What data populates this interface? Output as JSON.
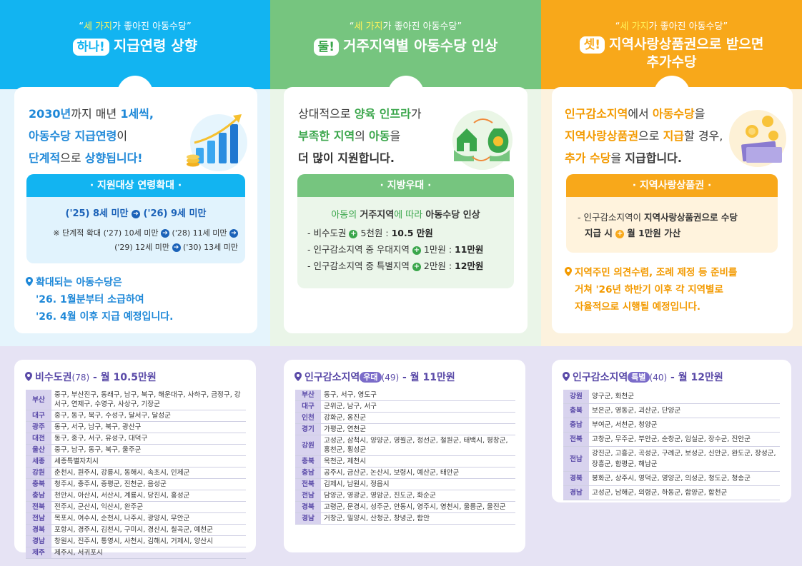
{
  "colors": {
    "blue": "#12b4f1",
    "green": "#76c57f",
    "orange": "#f8a81a",
    "purple": "#7b6cc9"
  },
  "slogan": {
    "q_open": "“",
    "hl": "세 가지",
    "rest": "가 좋아진 아동수당",
    "q_close": "”"
  },
  "col1": {
    "badge": "하나!",
    "heading": "지급연령 상향",
    "lead": {
      "l1a": "2030년",
      "l1b": "까지 매년 ",
      "l1c": "1세씩,",
      "l2a": "아동수당 지급연령",
      "l2b": "이",
      "l3a": "단계적",
      "l3b": "으로 ",
      "l3c": "상향됩니다!"
    },
    "box_title": "· 지원대상 연령확대 ·",
    "box_main_a": "('25) 8세 미만",
    "box_main_b": "('26) 9세 미만",
    "note_prefix": "※ 단계적 확대 ",
    "note1": "('27) 10세 미만",
    "note2": "('28) 11세 미만",
    "note3": "('29) 12세 미만",
    "note4": "('30) 13세 미만",
    "pin_l1": "확대되는 아동수당은",
    "pin_l2": "'26. 1월분부터 소급하여",
    "pin_l3": "'26. 4월 이후 지급 예정입니다."
  },
  "col2": {
    "badge": "둘!",
    "heading": "거주지역별 아동수당 인상",
    "lead": {
      "l1a": "상대적으로 ",
      "l1b": "양육 인프라",
      "l1c": "가",
      "l2a": "부족한 지역",
      "l2b": "의 ",
      "l2c": "아동",
      "l2d": "을",
      "l3": "더 많이 지원합니다."
    },
    "box_title": "· 지방우대 ·",
    "box_lead_a": "아동의 ",
    "box_lead_b": "거주지역",
    "box_lead_c": "에 따라 ",
    "box_lead_d": "아동수당 인상",
    "lines": [
      {
        "a": "- 비수도권 ",
        "b": "5천원 : ",
        "c": "10.5 만원"
      },
      {
        "a": "- 인구감소지역 중 우대지역 ",
        "b": "1만원 : ",
        "c": "11만원"
      },
      {
        "a": "- 인구감소지역 중 특별지역 ",
        "b": "2만원 : ",
        "c": "12만원"
      }
    ]
  },
  "col3": {
    "badge": "셋!",
    "heading_l1": "지역사랑상품권으로 받으면",
    "heading_l2": "추가수당",
    "lead": {
      "l1a": "인구감소지역",
      "l1b": "에서 ",
      "l1c": "아동수당",
      "l1d": "을",
      "l2a": "지역사랑상품권",
      "l2b": "으로 ",
      "l2c": "지급",
      "l2d": "할 경우,",
      "l3a": "추가 수당",
      "l3b": "을 ",
      "l3c": "지급합니다."
    },
    "box_title": "· 지역사랑상품권 ·",
    "box_l1a": "- 인구감소지역이 ",
    "box_l1b": "지역사랑상품권으로 수당",
    "box_l2a": "지급 시 ",
    "box_l2b": "월 1만원 가산",
    "pin_l1": "지역주민 의견수렴, 조례 제정 등 준비를",
    "pin_l2": "거쳐 '26년 하반기 이후 각 지역별로",
    "pin_l3": "자율적으로 시행될 예정입니다."
  },
  "table1": {
    "title_a": "비수도권",
    "title_b": "(78)",
    "title_c": " - 월 10.5만원",
    "rows": [
      {
        "region": "부산",
        "areas": "중구, 부산진구, 동래구, 남구, 북구, 해운대구, 사하구, 금정구, 강서구, 연제구, 수영구, 사상구, 기장군"
      },
      {
        "region": "대구",
        "areas": "중구, 동구, 북구, 수성구, 달서구, 달성군"
      },
      {
        "region": "광주",
        "areas": "동구, 서구, 남구, 북구, 광산구"
      },
      {
        "region": "대전",
        "areas": "동구, 중구, 서구, 유성구, 대덕구"
      },
      {
        "region": "울산",
        "areas": "중구, 남구, 동구, 북구, 울주군"
      },
      {
        "region": "세종",
        "areas": "세종특별자치시"
      },
      {
        "region": "강원",
        "areas": "춘천시, 원주시, 강릉시, 동해시, 속초시, 인제군"
      },
      {
        "region": "충북",
        "areas": "청주시, 충주시, 증평군, 진천군, 음성군"
      },
      {
        "region": "충남",
        "areas": "천안시, 아산시, 서산시, 계룡시, 당진시, 홍성군"
      },
      {
        "region": "전북",
        "areas": "전주시, 군산시, 익산시, 완주군"
      },
      {
        "region": "전남",
        "areas": "목포시, 여수시, 순천시, 나주시, 광양시, 무안군"
      },
      {
        "region": "경북",
        "areas": "포항시, 경주시, 김천시, 구미시, 경산시, 칠곡군, 예천군"
      },
      {
        "region": "경남",
        "areas": "창원시, 진주시, 통영시, 사천시, 김해시, 거제시, 양산시"
      },
      {
        "region": "제주",
        "areas": "제주시, 서귀포시"
      }
    ]
  },
  "table2": {
    "title_a": "인구감소지역",
    "title_tag": "우대",
    "title_b": "(49)",
    "title_c": " - 월 11만원",
    "rows": [
      {
        "region": "부산",
        "areas": "동구, 서구, 영도구"
      },
      {
        "region": "대구",
        "areas": "군위군, 남구, 서구"
      },
      {
        "region": "인천",
        "areas": "강화군, 옹진군"
      },
      {
        "region": "경기",
        "areas": "가평군, 연천군"
      },
      {
        "region": "강원",
        "areas": "고성군, 삼척시, 양양군, 영월군, 정선군, 철원군, 태백시, 평창군, 홍천군, 횡성군"
      },
      {
        "region": "충북",
        "areas": "옥천군, 제천시"
      },
      {
        "region": "충남",
        "areas": "공주시, 금산군, 논산시, 보령시, 예산군, 태안군"
      },
      {
        "region": "전북",
        "areas": "김제시, 남원시, 정읍시"
      },
      {
        "region": "전남",
        "areas": "담양군, 영광군, 영암군, 진도군, 화순군"
      },
      {
        "region": "경북",
        "areas": "고령군, 문경시, 성주군, 안동시, 영주시, 영천시, 울릉군, 울진군"
      },
      {
        "region": "경남",
        "areas": "거창군, 밀양시, 산청군, 창녕군, 함안"
      }
    ]
  },
  "table3": {
    "title_a": "인구감소지역",
    "title_tag": "특별",
    "title_b": "(40)",
    "title_c": " - 월 12만원",
    "rows": [
      {
        "region": "강원",
        "areas": "양구군, 화천군"
      },
      {
        "region": "충북",
        "areas": "보은군, 영동군, 괴산군, 단양군"
      },
      {
        "region": "충남",
        "areas": "부여군, 서천군, 청양군"
      },
      {
        "region": "전북",
        "areas": "고창군, 무주군, 부안군, 순창군, 임실군, 장수군, 진안군"
      },
      {
        "region": "전남",
        "areas": "강진군, 고흥군, 곡성군, 구례군, 보성군, 신안군, 완도군, 장성군, 장흥군, 함평군, 해남군"
      },
      {
        "region": "경북",
        "areas": "봉화군, 상주시, 영덕군, 영양군, 의성군, 청도군, 청송군"
      },
      {
        "region": "경남",
        "areas": "고성군, 남해군, 의령군, 하동군, 함양군, 합천군"
      }
    ]
  }
}
